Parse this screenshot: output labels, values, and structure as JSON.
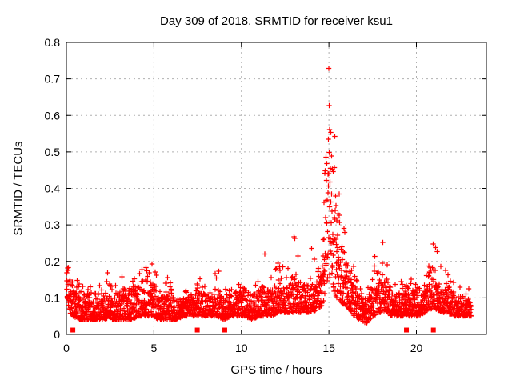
{
  "figure": {
    "title": "Day 309 of 2018, SRMTID for receiver ksu1",
    "x_axis_title": "GPS time / hours",
    "y_axis_title": "SRMTID / TECUs",
    "background_color": "#ffffff",
    "text_color": "#000000"
  },
  "chart_data": {
    "type": "scatter",
    "title": "Day 309 of 2018, SRMTID for receiver ksu1",
    "xlabel": "GPS time / hours",
    "ylabel": "SRMTID / TECUs",
    "xlim": [
      0,
      24
    ],
    "ylim": [
      0,
      0.8
    ],
    "xticks": [
      0,
      5,
      10,
      15,
      20
    ],
    "yticks": [
      0,
      0.1,
      0.2,
      0.3,
      0.4,
      0.5,
      0.6,
      0.7,
      0.8
    ],
    "grid": true,
    "grid_style": "dashed",
    "grid_color": "#b0b0b0",
    "border_color": "#000000",
    "legend": "none",
    "marker": "plus",
    "marker_color": "#ff0000",
    "series": [
      {
        "name": "srmtid-values",
        "marker": "plus",
        "color": "#ff0000",
        "sampling": {
          "seed": 2018309,
          "samples_per_hour": 115,
          "t_start": 0.02,
          "t_end": 23.15,
          "spike_probability": 0.05,
          "band_exponent": 1.6
        },
        "envelope_columns": [
          "hour",
          "min",
          "typical_max",
          "spike_max"
        ],
        "envelope": [
          [
            0.0,
            0.1,
            0.2,
            0.235
          ],
          [
            0.1,
            0.08,
            0.19,
            0.22
          ],
          [
            0.2,
            0.06,
            0.15,
            0.18
          ],
          [
            0.35,
            0.05,
            0.12,
            0.15
          ],
          [
            0.8,
            0.04,
            0.12,
            0.155
          ],
          [
            1.2,
            0.04,
            0.11,
            0.14
          ],
          [
            1.6,
            0.04,
            0.12,
            0.16
          ],
          [
            2.0,
            0.04,
            0.1,
            0.13
          ],
          [
            2.25,
            0.04,
            0.11,
            0.14
          ],
          [
            2.4,
            0.05,
            0.13,
            0.21
          ],
          [
            2.6,
            0.04,
            0.11,
            0.14
          ],
          [
            3.0,
            0.04,
            0.12,
            0.15
          ],
          [
            3.3,
            0.04,
            0.13,
            0.165
          ],
          [
            3.7,
            0.04,
            0.12,
            0.15
          ],
          [
            4.1,
            0.05,
            0.14,
            0.18
          ],
          [
            4.5,
            0.05,
            0.15,
            0.2
          ],
          [
            4.95,
            0.05,
            0.15,
            0.21
          ],
          [
            5.3,
            0.04,
            0.11,
            0.13
          ],
          [
            5.75,
            0.04,
            0.12,
            0.16
          ],
          [
            6.2,
            0.04,
            0.1,
            0.12
          ],
          [
            6.7,
            0.05,
            0.1,
            0.13
          ],
          [
            7.1,
            0.05,
            0.11,
            0.14
          ],
          [
            7.45,
            0.05,
            0.13,
            0.18
          ],
          [
            7.8,
            0.05,
            0.12,
            0.15
          ],
          [
            8.2,
            0.05,
            0.1,
            0.12
          ],
          [
            8.65,
            0.05,
            0.13,
            0.19
          ],
          [
            9.0,
            0.04,
            0.11,
            0.13
          ],
          [
            9.4,
            0.05,
            0.11,
            0.14
          ],
          [
            9.8,
            0.05,
            0.12,
            0.14
          ],
          [
            10.2,
            0.05,
            0.13,
            0.17
          ],
          [
            10.6,
            0.04,
            0.11,
            0.14
          ],
          [
            11.0,
            0.05,
            0.12,
            0.16
          ],
          [
            11.4,
            0.05,
            0.14,
            0.23
          ],
          [
            11.75,
            0.05,
            0.12,
            0.15
          ],
          [
            12.1,
            0.06,
            0.16,
            0.27
          ],
          [
            12.45,
            0.06,
            0.13,
            0.17
          ],
          [
            12.8,
            0.06,
            0.15,
            0.22
          ],
          [
            13.05,
            0.06,
            0.18,
            0.31
          ],
          [
            13.35,
            0.06,
            0.13,
            0.18
          ],
          [
            13.7,
            0.06,
            0.14,
            0.2
          ],
          [
            14.05,
            0.06,
            0.16,
            0.26
          ],
          [
            14.35,
            0.07,
            0.14,
            0.18
          ],
          [
            14.6,
            0.08,
            0.18,
            0.26
          ],
          [
            14.78,
            0.1,
            0.3,
            0.45
          ],
          [
            14.9,
            0.14,
            0.55,
            0.72
          ],
          [
            15.0,
            0.16,
            0.63,
            0.775
          ],
          [
            15.1,
            0.15,
            0.58,
            0.72
          ],
          [
            15.25,
            0.12,
            0.48,
            0.58
          ],
          [
            15.45,
            0.1,
            0.38,
            0.5
          ],
          [
            15.65,
            0.09,
            0.3,
            0.38
          ],
          [
            15.9,
            0.08,
            0.24,
            0.3
          ],
          [
            16.15,
            0.07,
            0.18,
            0.24
          ],
          [
            16.45,
            0.05,
            0.14,
            0.18
          ],
          [
            16.8,
            0.04,
            0.11,
            0.14
          ],
          [
            17.15,
            0.03,
            0.09,
            0.12
          ],
          [
            17.5,
            0.05,
            0.14,
            0.18
          ],
          [
            17.85,
            0.06,
            0.18,
            0.28
          ],
          [
            18.15,
            0.06,
            0.17,
            0.26
          ],
          [
            18.5,
            0.05,
            0.13,
            0.17
          ],
          [
            18.9,
            0.05,
            0.11,
            0.14
          ],
          [
            19.3,
            0.05,
            0.13,
            0.16
          ],
          [
            19.7,
            0.05,
            0.13,
            0.17
          ],
          [
            20.1,
            0.05,
            0.12,
            0.15
          ],
          [
            20.5,
            0.06,
            0.14,
            0.18
          ],
          [
            20.85,
            0.07,
            0.19,
            0.27
          ],
          [
            21.05,
            0.07,
            0.2,
            0.29
          ],
          [
            21.35,
            0.06,
            0.15,
            0.19
          ],
          [
            21.75,
            0.06,
            0.14,
            0.19
          ],
          [
            22.15,
            0.05,
            0.12,
            0.16
          ],
          [
            22.55,
            0.05,
            0.11,
            0.15
          ],
          [
            22.9,
            0.05,
            0.1,
            0.13
          ],
          [
            23.15,
            0.05,
            0.09,
            0.12
          ]
        ]
      },
      {
        "name": "flag-markers",
        "marker": "filled-square",
        "color": "#ff0000",
        "x": [
          0.37,
          7.48,
          9.05,
          19.43,
          20.97
        ],
        "y": 0.012
      }
    ]
  }
}
